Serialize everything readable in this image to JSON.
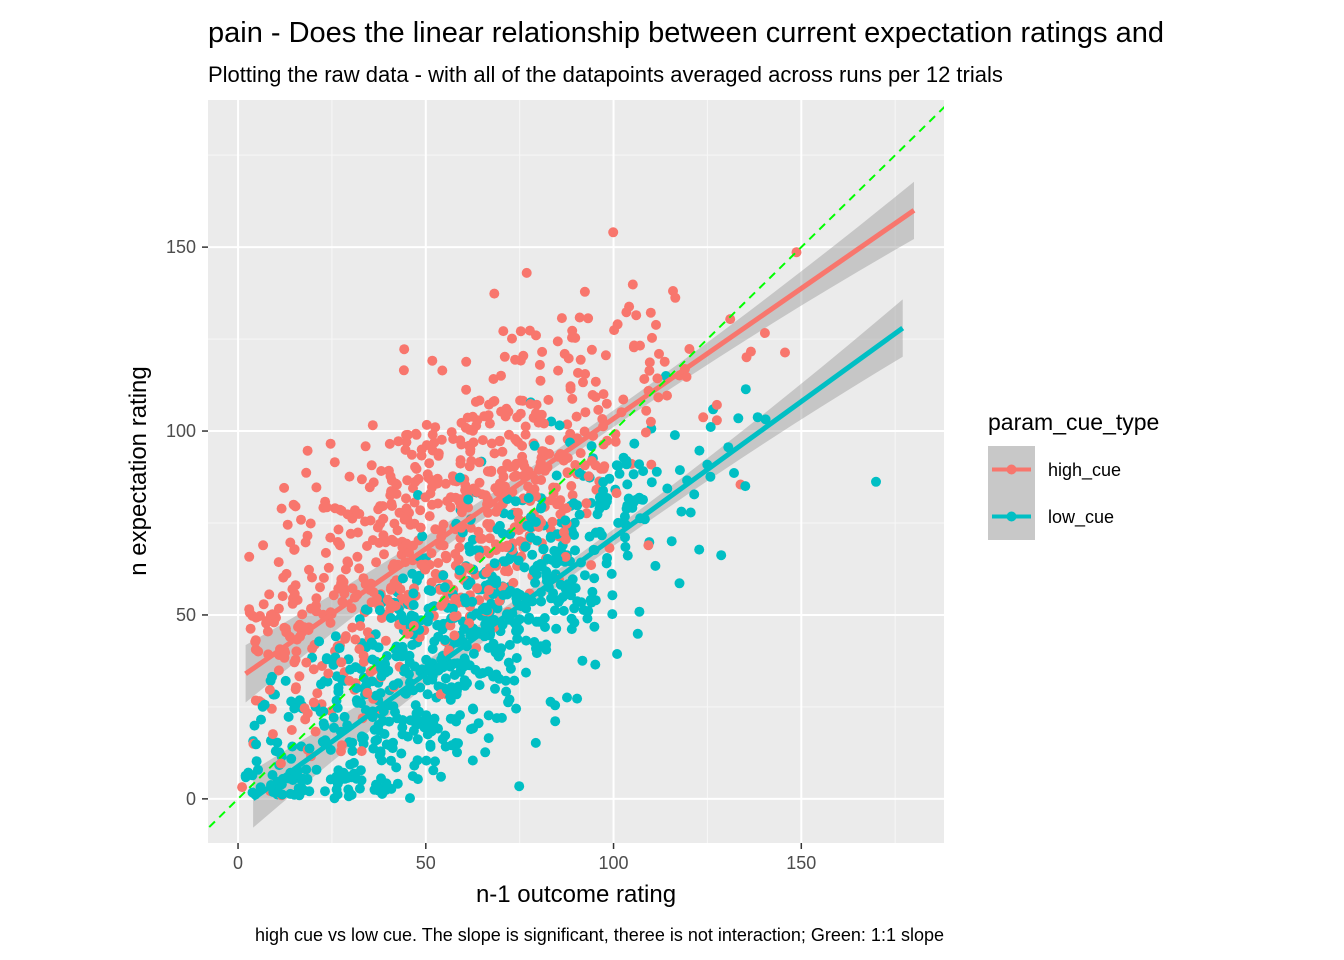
{
  "chart_data": {
    "type": "scatter",
    "title": "pain - Does the linear relationship between current expectation ratings and",
    "subtitle": "Plotting the raw data - with all of the datapoints averaged across runs per 12 trials",
    "xlabel": "n-1 outcome rating",
    "ylabel": "n expectation rating",
    "caption": "high cue vs low cue. The slope is significant, theree is not interaction; Green: 1:1 slope",
    "xlim": [
      -8,
      188
    ],
    "ylim": [
      -12,
      190
    ],
    "x_ticks": [
      0,
      50,
      100,
      150
    ],
    "y_ticks": [
      0,
      50,
      100,
      150
    ],
    "grid": true,
    "legend": {
      "title": "param_cue_type",
      "position": "right",
      "entries": [
        "high_cue",
        "low_cue"
      ]
    },
    "reference_line": {
      "slope": 1,
      "intercept": 0,
      "color": "#00ff00",
      "style": "dashed"
    },
    "series": [
      {
        "name": "high_cue",
        "color": "#F8766D",
        "fit": {
          "x_start": 2,
          "x_end": 180,
          "y_start": 34,
          "y_end": 160,
          "band": 4
        },
        "cloud": {
          "count": 760,
          "x_center": 58,
          "x_sd": 30,
          "slope": 0.71,
          "intercept": 35,
          "resid_sd": 19
        }
      },
      {
        "name": "low_cue",
        "color": "#00BFC4",
        "fit": {
          "x_start": 4,
          "x_end": 177,
          "y_start": 0,
          "y_end": 128,
          "band": 4
        },
        "cloud": {
          "count": 760,
          "x_center": 58,
          "x_sd": 30,
          "slope": 0.74,
          "intercept": -3,
          "resid_sd": 16
        }
      }
    ]
  }
}
